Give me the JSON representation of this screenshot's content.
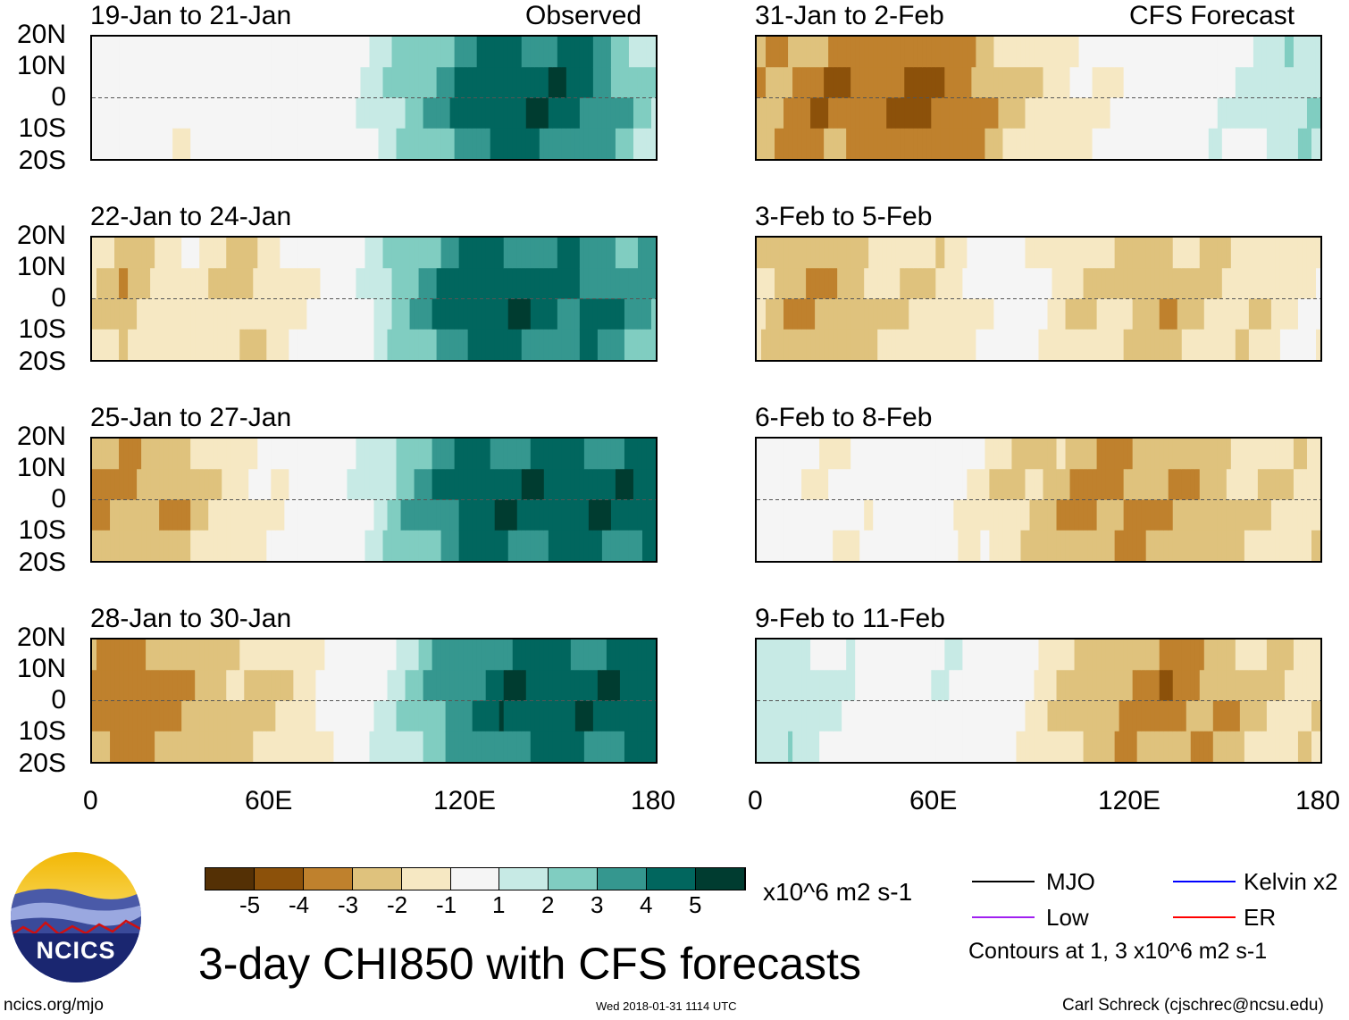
{
  "titles": {
    "observed": "Observed",
    "forecast": "CFS Forecast",
    "main": "3-day CHI850 with CFS forecasts"
  },
  "lat_labels": [
    "20N",
    "10N",
    "0",
    "10S",
    "20S"
  ],
  "lon_labels": [
    "0",
    "60E",
    "120E",
    "180"
  ],
  "chart_data": {
    "type": "heatmap",
    "variable": "CHI850 anomaly (zonal profile estimate)",
    "units": "x10^6 m2 s-1",
    "longitudes": [
      0,
      10,
      20,
      30,
      40,
      50,
      60,
      70,
      80,
      90,
      100,
      110,
      120,
      130,
      140,
      150,
      160,
      170,
      180
    ],
    "panels": [
      {
        "period": "19-Jan to 21-Jan",
        "group": "observed",
        "values": [
          0,
          0,
          -0.5,
          -1,
          0,
          0,
          0,
          0,
          0,
          1.5,
          2.5,
          3.5,
          4.5,
          5,
          5,
          5,
          4.5,
          3,
          2
        ]
      },
      {
        "period": "22-Jan to 24-Jan",
        "group": "observed",
        "values": [
          -2,
          -3,
          -2,
          -1.5,
          -2,
          -2.5,
          -1.5,
          -1,
          0,
          1.5,
          3,
          4,
          5,
          5,
          5,
          4.5,
          4.5,
          4,
          3.5
        ]
      },
      {
        "period": "25-Jan to 27-Jan",
        "group": "observed",
        "values": [
          -3,
          -3.5,
          -3,
          -3,
          -2,
          -1.5,
          -1,
          0,
          0.5,
          1.5,
          3,
          4,
          5,
          5,
          5,
          5,
          5,
          5,
          5
        ]
      },
      {
        "period": "28-Jan to 30-Jan",
        "group": "observed",
        "values": [
          -3.5,
          -4,
          -3.5,
          -3,
          -2.5,
          -2.5,
          -2,
          -1.5,
          -0.5,
          1,
          2,
          3.5,
          4,
          5,
          5,
          5,
          5,
          5,
          5
        ]
      },
      {
        "period": "31-Jan to 2-Feb",
        "group": "forecast",
        "values": [
          -3,
          -3.5,
          -4,
          -4,
          -4,
          -4.5,
          -4,
          -3.5,
          -2.5,
          -2,
          -1.5,
          -1,
          -0.5,
          0,
          0.5,
          1,
          1.5,
          2,
          2
        ]
      },
      {
        "period": "3-Feb to 5-Feb",
        "group": "forecast",
        "values": [
          -2,
          -3,
          -3,
          -3,
          -2,
          -2,
          -2,
          -1,
          -0.5,
          -1,
          -2,
          -2,
          -2.5,
          -3,
          -2.5,
          -2,
          -2,
          -1.5,
          -1
        ]
      },
      {
        "period": "6-Feb to 8-Feb",
        "group": "forecast",
        "values": [
          0,
          -0.5,
          -1,
          -1,
          -0.5,
          0,
          -0.5,
          -1.5,
          -2,
          -2.5,
          -3,
          -3.5,
          -3.5,
          -3,
          -3,
          -2.5,
          -2,
          -2,
          -2
        ]
      },
      {
        "period": "9-Feb to 11-Feb",
        "group": "forecast",
        "values": [
          1.5,
          2,
          1.5,
          1,
          0,
          0,
          1,
          0.5,
          -0.5,
          -1.5,
          -2.5,
          -3,
          -3.5,
          -4,
          -3.5,
          -3,
          -2.5,
          -2,
          -2
        ]
      }
    ],
    "colorbar": {
      "ticks": [
        "-5",
        "-4",
        "-3",
        "-2",
        "-1",
        "1",
        "2",
        "3",
        "4",
        "5"
      ],
      "levels": [
        -5,
        -4,
        -3,
        -2,
        -1,
        1,
        2,
        3,
        4,
        5
      ],
      "colors": [
        "#543005",
        "#8c510a",
        "#bf812d",
        "#dfc27d",
        "#f6e8c3",
        "#f5f5f5",
        "#c7eae5",
        "#80cdc1",
        "#35978f",
        "#01665e",
        "#003c30"
      ],
      "units": "x10^6 m2 s-1"
    },
    "legend": [
      {
        "label": "MJO",
        "color": "#000000"
      },
      {
        "label": "Kelvin x2",
        "color": "#0000ff"
      },
      {
        "label": "Low",
        "color": "#a020f0"
      },
      {
        "label": "ER",
        "color": "#ff0000"
      }
    ],
    "contour_note": "Contours at 1, 3 x10^6 m2 s-1"
  },
  "logo": {
    "text": "NCICS"
  },
  "footer": {
    "url": "ncics.org/mjo",
    "timestamp": "Wed 2018-01-31 1114 UTC",
    "credit": "Carl Schreck (cjschrec@ncsu.edu)"
  }
}
